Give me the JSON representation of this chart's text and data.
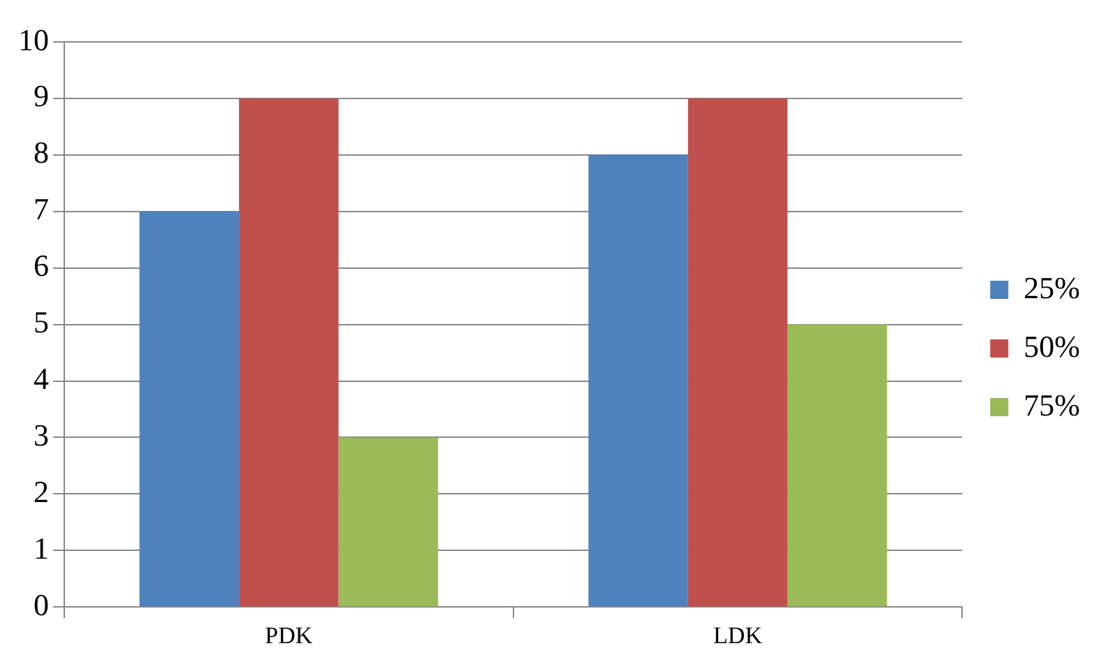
{
  "chart_data": {
    "type": "bar",
    "categories": [
      "PDK",
      "LDK"
    ],
    "series": [
      {
        "name": "25%",
        "color": "#4f81bd",
        "values": [
          7,
          8
        ]
      },
      {
        "name": "50%",
        "color": "#c0504d",
        "values": [
          9,
          9
        ]
      },
      {
        "name": "75%",
        "color": "#9bbb59",
        "values": [
          3,
          5
        ]
      }
    ],
    "ylim": [
      0,
      10
    ],
    "yticks": [
      0,
      1,
      2,
      3,
      4,
      5,
      6,
      7,
      8,
      9,
      10
    ],
    "grid": "y",
    "legend": "right"
  }
}
